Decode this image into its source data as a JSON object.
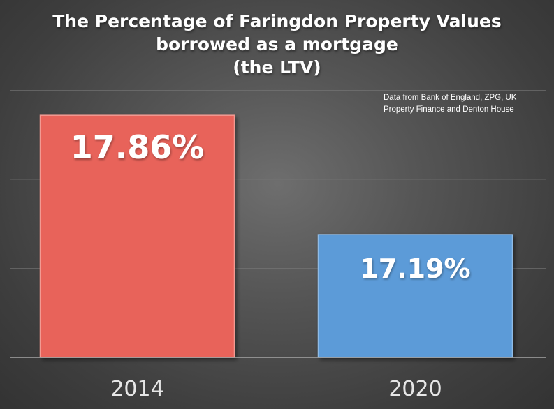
{
  "chart_data": {
    "type": "bar",
    "title_lines": [
      "The Percentage of Faringdon Property Values",
      "borrowed as a mortgage",
      "(the LTV)"
    ],
    "annotation_lines": [
      "Data from Bank of England, ZPG, UK",
      "Property Finance and Denton House"
    ],
    "categories": [
      "2014",
      "2020"
    ],
    "values": [
      17.86,
      17.19
    ],
    "data_labels": [
      "17.86%",
      "17.19%"
    ],
    "colors": [
      "#e8635a",
      "#5b9bd8"
    ],
    "ylim": [
      16.5,
      18
    ],
    "grid": true,
    "xlabel": "",
    "ylabel": ""
  }
}
